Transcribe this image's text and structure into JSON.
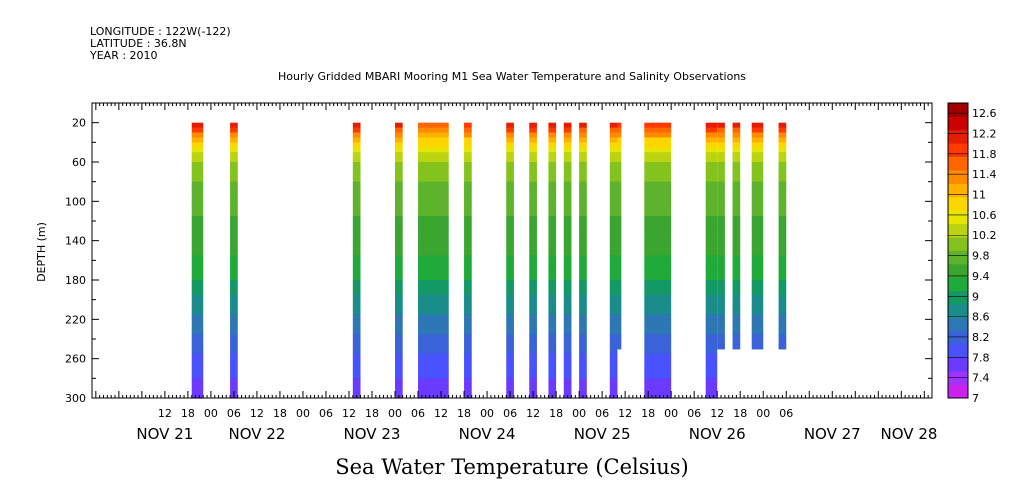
{
  "header": {
    "longitude": "LONGITUDE : 122W(-122)",
    "latitude": "LATITUDE : 36.8N",
    "year": "YEAR : 2010"
  },
  "chart_data": {
    "type": "heatmap",
    "title": "Hourly Gridded MBARI Mooring M1 Sea Water Temperature and Salinity Observations",
    "ylabel": "DEPTH (m)",
    "caption": "Sea Water Temperature (Celsius)",
    "ylim": [
      300,
      0
    ],
    "depth_range": [
      20,
      300
    ],
    "y_ticks": [
      20,
      60,
      100,
      140,
      180,
      220,
      260,
      300
    ],
    "x_hour_labels": [
      "12",
      "18",
      "00",
      "06",
      "12",
      "18",
      "00",
      "06",
      "12",
      "18",
      "00",
      "06",
      "12",
      "18",
      "00",
      "06",
      "12",
      "18",
      "00",
      "06",
      "12",
      "18",
      "00",
      "06",
      "12",
      "18",
      "00",
      "06"
    ],
    "x_hour_label_start_hours": 12,
    "x_day_labels": [
      {
        "label": "NOV 21",
        "hours": 12
      },
      {
        "label": "NOV 22",
        "hours": 36
      },
      {
        "label": "NOV 23",
        "hours": 66
      },
      {
        "label": "NOV 24",
        "hours": 96
      },
      {
        "label": "NOV 25",
        "hours": 126
      },
      {
        "label": "NOV 26",
        "hours": 156
      },
      {
        "label": "NOV 27",
        "hours": 186
      },
      {
        "label": "NOV 28",
        "hours": 206
      }
    ],
    "x_range_hours": [
      -7,
      212
    ],
    "colorbar": {
      "labels": [
        "12.6",
        "12.2",
        "11.8",
        "11.4",
        "11",
        "10.6",
        "10.2",
        "9.8",
        "9.4",
        "9",
        "8.6",
        "8.2",
        "7.8",
        "7.4",
        "7"
      ],
      "min": 7,
      "max": 12.8,
      "colors": [
        "#cc22ee",
        "#a033ff",
        "#6a3bff",
        "#4a52ff",
        "#3a63d9",
        "#2d77b4",
        "#1a8c8a",
        "#139966",
        "#1faa3a",
        "#3aa630",
        "#5db32c",
        "#84c21e",
        "#bcd410",
        "#e6e600",
        "#ffd500",
        "#ffb000",
        "#ff8a00",
        "#ff6600",
        "#ff3a00",
        "#e61e00",
        "#cc0000",
        "#a00000"
      ]
    },
    "profile": {
      "depths": [
        20,
        40,
        60,
        80,
        100,
        140,
        180,
        220,
        260,
        300
      ],
      "temps": [
        12.4,
        10.8,
        10.2,
        9.9,
        9.7,
        9.5,
        9.1,
        8.5,
        8.0,
        7.6
      ]
    },
    "columns": [
      {
        "t0": 19,
        "t1": 22,
        "bottom_depth": 300,
        "surface_temp": 12.4
      },
      {
        "t0": 29,
        "t1": 31,
        "bottom_depth": 300,
        "surface_temp": 12.4
      },
      {
        "t0": 61,
        "t1": 63,
        "bottom_depth": 300,
        "surface_temp": 12.4
      },
      {
        "t0": 72,
        "t1": 74,
        "bottom_depth": 300,
        "surface_temp": 12.2
      },
      {
        "t0": 78,
        "t1": 86,
        "bottom_depth": 300,
        "surface_temp": 11.6
      },
      {
        "t0": 90,
        "t1": 92,
        "bottom_depth": 300,
        "surface_temp": 12.0
      },
      {
        "t0": 101,
        "t1": 103,
        "bottom_depth": 300,
        "surface_temp": 12.4
      },
      {
        "t0": 107,
        "t1": 109,
        "bottom_depth": 300,
        "surface_temp": 12.4
      },
      {
        "t0": 112,
        "t1": 114,
        "bottom_depth": 300,
        "surface_temp": 12.4
      },
      {
        "t0": 116,
        "t1": 118,
        "bottom_depth": 300,
        "surface_temp": 12.4
      },
      {
        "t0": 120,
        "t1": 122,
        "bottom_depth": 300,
        "surface_temp": 12.2
      },
      {
        "t0": 128,
        "t1": 130,
        "bottom_depth": 300,
        "surface_temp": 12.2
      },
      {
        "t0": 130,
        "t1": 131,
        "bottom_depth": 250,
        "surface_temp": 12.0
      },
      {
        "t0": 137,
        "t1": 144,
        "bottom_depth": 300,
        "surface_temp": 12.0
      },
      {
        "t0": 153,
        "t1": 156,
        "bottom_depth": 300,
        "surface_temp": 12.4
      },
      {
        "t0": 156,
        "t1": 158,
        "bottom_depth": 250,
        "surface_temp": 12.2
      },
      {
        "t0": 160,
        "t1": 162,
        "bottom_depth": 250,
        "surface_temp": 12.2
      },
      {
        "t0": 165,
        "t1": 168,
        "bottom_depth": 250,
        "surface_temp": 12.4
      },
      {
        "t0": 172,
        "t1": 174,
        "bottom_depth": 250,
        "surface_temp": 12.4
      }
    ]
  }
}
